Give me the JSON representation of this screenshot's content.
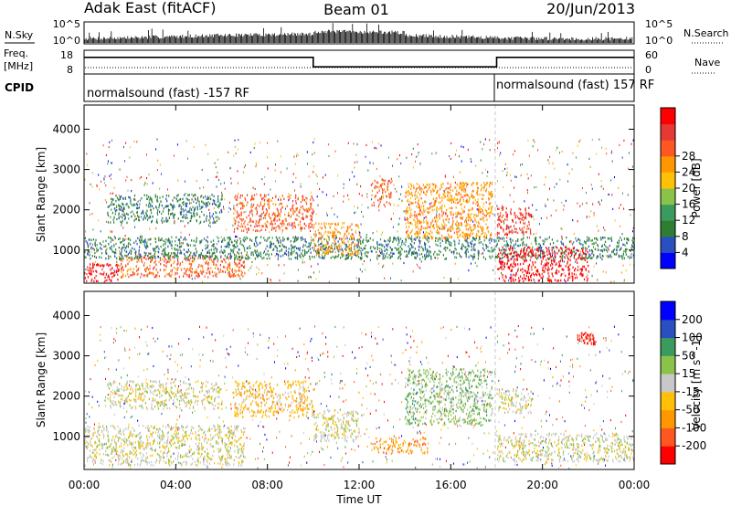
{
  "header": {
    "station": "Adak East (fitACF)",
    "beam": "Beam 01",
    "date": "20/Jun/2013"
  },
  "strips": {
    "nsky": {
      "label": "N.Sky",
      "right_label": "N.Search",
      "left_ticks": [
        "10^5",
        "10^0"
      ],
      "right_ticks": [
        "10^5",
        "10^0"
      ]
    },
    "freq": {
      "label_line1": "Freq.",
      "label_line2": "[MHz]",
      "left_ticks": [
        "18",
        "8"
      ],
      "right_ticks": [
        "60",
        "0"
      ],
      "right_label": "Nave",
      "segments": [
        {
          "start_hour": 0,
          "end_hour": 10,
          "freq_mhz": 15.0
        },
        {
          "start_hour": 10,
          "end_hour": 18,
          "freq_mhz": 11.0
        },
        {
          "start_hour": 18,
          "end_hour": 24,
          "freq_mhz": 15.0
        }
      ]
    },
    "cpid": {
      "label": "CPID",
      "programs": [
        {
          "start_hour": 0,
          "text": "normalsound (fast) -157 RF"
        },
        {
          "start_hour": 18,
          "text": "normalsound (fast) 157 RF"
        }
      ]
    }
  },
  "chart_data": [
    {
      "type": "heatmap",
      "name": "power",
      "ylabel": "Slant Range [km]",
      "yticks": [
        1000,
        2000,
        3000,
        4000
      ],
      "ylim": [
        180,
        4600
      ],
      "xlim_hours": [
        0,
        24
      ],
      "colorbar": {
        "label": "Power [dB]",
        "ticks": [
          "4",
          "8",
          "12",
          "16",
          "20",
          "24",
          "28"
        ],
        "colors": [
          "#0000ff",
          "#2a4fbf",
          "#2e7d32",
          "#3b9b5e",
          "#8bc34a",
          "#ffc107",
          "#ff9800",
          "#ff5722",
          "#e53935",
          "#ff0000"
        ]
      },
      "features": [
        {
          "t0": 0.0,
          "t1": 1.5,
          "r0": 250,
          "r1": 700,
          "level": 9
        },
        {
          "t0": 1.5,
          "t1": 7.0,
          "r0": 350,
          "r1": 900,
          "level": 7
        },
        {
          "t0": 0.0,
          "t1": 24.0,
          "r0": 800,
          "r1": 1350,
          "level": 2
        },
        {
          "t0": 1.0,
          "t1": 6.0,
          "r0": 1700,
          "r1": 2400,
          "level": 2
        },
        {
          "t0": 6.5,
          "t1": 10.0,
          "r0": 1500,
          "r1": 2400,
          "level": 7
        },
        {
          "t0": 10.0,
          "t1": 12.0,
          "r0": 900,
          "r1": 1700,
          "level": 6
        },
        {
          "t0": 14.0,
          "t1": 17.8,
          "r0": 1300,
          "r1": 2700,
          "level": 6
        },
        {
          "t0": 18.0,
          "t1": 19.5,
          "r0": 1400,
          "r1": 2100,
          "level": 8
        },
        {
          "t0": 18.0,
          "t1": 22.0,
          "r0": 250,
          "r1": 1100,
          "level": 9
        },
        {
          "t0": 12.5,
          "t1": 13.4,
          "r0": 2100,
          "r1": 2800,
          "level": 7
        }
      ]
    },
    {
      "type": "heatmap",
      "name": "velocity",
      "ylabel": "Slant Range [km]",
      "yticks": [
        1000,
        2000,
        3000,
        4000
      ],
      "ylim": [
        180,
        4600
      ],
      "xlim_hours": [
        0,
        24
      ],
      "xticks": [
        "00:00",
        "04:00",
        "08:00",
        "12:00",
        "16:00",
        "20:00",
        "00:00"
      ],
      "xlabel": "Time UT",
      "colorbar": {
        "label": "Velocity [m s^-1]",
        "ticks": [
          "-200",
          "-100",
          "-50",
          "-15",
          "15",
          "50",
          "100",
          "200"
        ],
        "colors": [
          "#ff0000",
          "#ff5722",
          "#ff9800",
          "#ffc107",
          "#c8c8c8",
          "#8bc34a",
          "#3b9b5e",
          "#2a4fbf",
          "#0000ff"
        ]
      },
      "features": [
        {
          "t0": 0.0,
          "t1": 7.0,
          "r0": 300,
          "r1": 1300,
          "level": 4
        },
        {
          "t0": 1.0,
          "t1": 6.0,
          "r0": 1700,
          "r1": 2400,
          "level": 4
        },
        {
          "t0": 6.5,
          "t1": 10.0,
          "r0": 1500,
          "r1": 2400,
          "level": 3
        },
        {
          "t0": 10.0,
          "t1": 12.0,
          "r0": 900,
          "r1": 1700,
          "level": 4
        },
        {
          "t0": 12.5,
          "t1": 15.0,
          "r0": 600,
          "r1": 1000,
          "level": 2
        },
        {
          "t0": 14.0,
          "t1": 17.8,
          "r0": 1300,
          "r1": 2700,
          "level": 5
        },
        {
          "t0": 18.0,
          "t1": 24.0,
          "r0": 400,
          "r1": 1100,
          "level": 4
        },
        {
          "t0": 18.0,
          "t1": 19.5,
          "r0": 1600,
          "r1": 2200,
          "level": 4
        },
        {
          "t0": 21.5,
          "t1": 22.3,
          "r0": 3300,
          "r1": 3600,
          "level": 0
        }
      ]
    }
  ]
}
